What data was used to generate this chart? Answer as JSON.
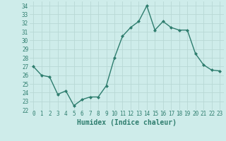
{
  "x": [
    0,
    1,
    2,
    3,
    4,
    5,
    6,
    7,
    8,
    9,
    10,
    11,
    12,
    13,
    14,
    15,
    16,
    17,
    18,
    19,
    20,
    21,
    22,
    23
  ],
  "y": [
    27,
    26,
    25.8,
    23.8,
    24.2,
    22.5,
    23.2,
    23.5,
    23.5,
    24.8,
    28.0,
    30.5,
    31.5,
    32.2,
    34.0,
    31.2,
    32.2,
    31.5,
    31.2,
    31.2,
    28.5,
    27.2,
    26.6,
    26.5
  ],
  "line_color": "#2e7d6e",
  "marker": "D",
  "marker_size": 2,
  "bg_color": "#ceecea",
  "grid_color": "#b8d8d5",
  "xlabel": "Humidex (Indice chaleur)",
  "ylim": [
    22,
    34.5
  ],
  "xlim": [
    -0.5,
    23.5
  ],
  "yticks": [
    22,
    23,
    24,
    25,
    26,
    27,
    28,
    29,
    30,
    31,
    32,
    33,
    34
  ],
  "xticks": [
    0,
    1,
    2,
    3,
    4,
    5,
    6,
    7,
    8,
    9,
    10,
    11,
    12,
    13,
    14,
    15,
    16,
    17,
    18,
    19,
    20,
    21,
    22,
    23
  ],
  "tick_label_fontsize": 5.5,
  "xlabel_fontsize": 7,
  "line_width": 1.0,
  "tick_color": "#2e7d6e"
}
